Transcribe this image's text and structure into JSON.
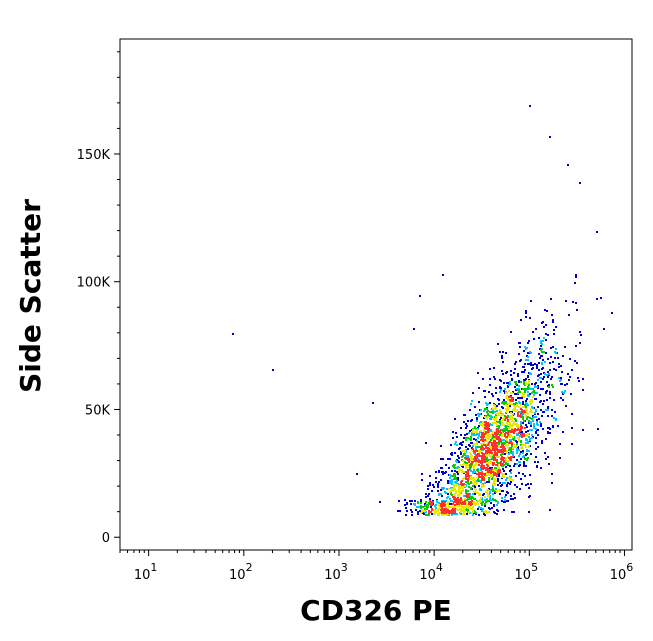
{
  "chart_data": {
    "type": "scatter",
    "title": "",
    "xlabel": "CD326 PE",
    "ylabel": "Side Scatter",
    "x_scale": "log",
    "xlim": [
      5,
      1200000
    ],
    "ylim": [
      -5000,
      195000
    ],
    "x_ticks": [
      {
        "value": 10,
        "base": "10",
        "exp": "1"
      },
      {
        "value": 100,
        "base": "10",
        "exp": "2"
      },
      {
        "value": 1000,
        "base": "10",
        "exp": "3"
      },
      {
        "value": 10000,
        "base": "10",
        "exp": "4"
      },
      {
        "value": 100000,
        "base": "10",
        "exp": "5"
      },
      {
        "value": 1000000,
        "base": "10",
        "exp": "6"
      }
    ],
    "y_ticks": [
      {
        "value": 0,
        "label": "0"
      },
      {
        "value": 50000,
        "label": "50K"
      },
      {
        "value": 100000,
        "label": "100K"
      },
      {
        "value": 150000,
        "label": "150K"
      }
    ],
    "grid": false,
    "legend": "none",
    "density_colors": [
      "#0000c8",
      "#00c8ff",
      "#00d000",
      "#e8e800",
      "#ff3030"
    ],
    "population": {
      "count": 2600,
      "center_log10_x": 4.6,
      "x_spread_log10": 0.35,
      "y_base": 34000,
      "y_slope_per_decade": 42000,
      "y_spread": 12000
    },
    "outliers": [
      {
        "x": 75,
        "y": 80000
      },
      {
        "x": 200,
        "y": 66000
      },
      {
        "x": 1500,
        "y": 25000
      },
      {
        "x": 2200,
        "y": 53000
      },
      {
        "x": 6000,
        "y": 82000
      },
      {
        "x": 7000,
        "y": 95000
      },
      {
        "x": 12000,
        "y": 103000
      },
      {
        "x": 100000,
        "y": 169000
      },
      {
        "x": 160000,
        "y": 157000
      },
      {
        "x": 250000,
        "y": 146000
      },
      {
        "x": 330000,
        "y": 139000
      },
      {
        "x": 500000,
        "y": 120000
      }
    ]
  }
}
